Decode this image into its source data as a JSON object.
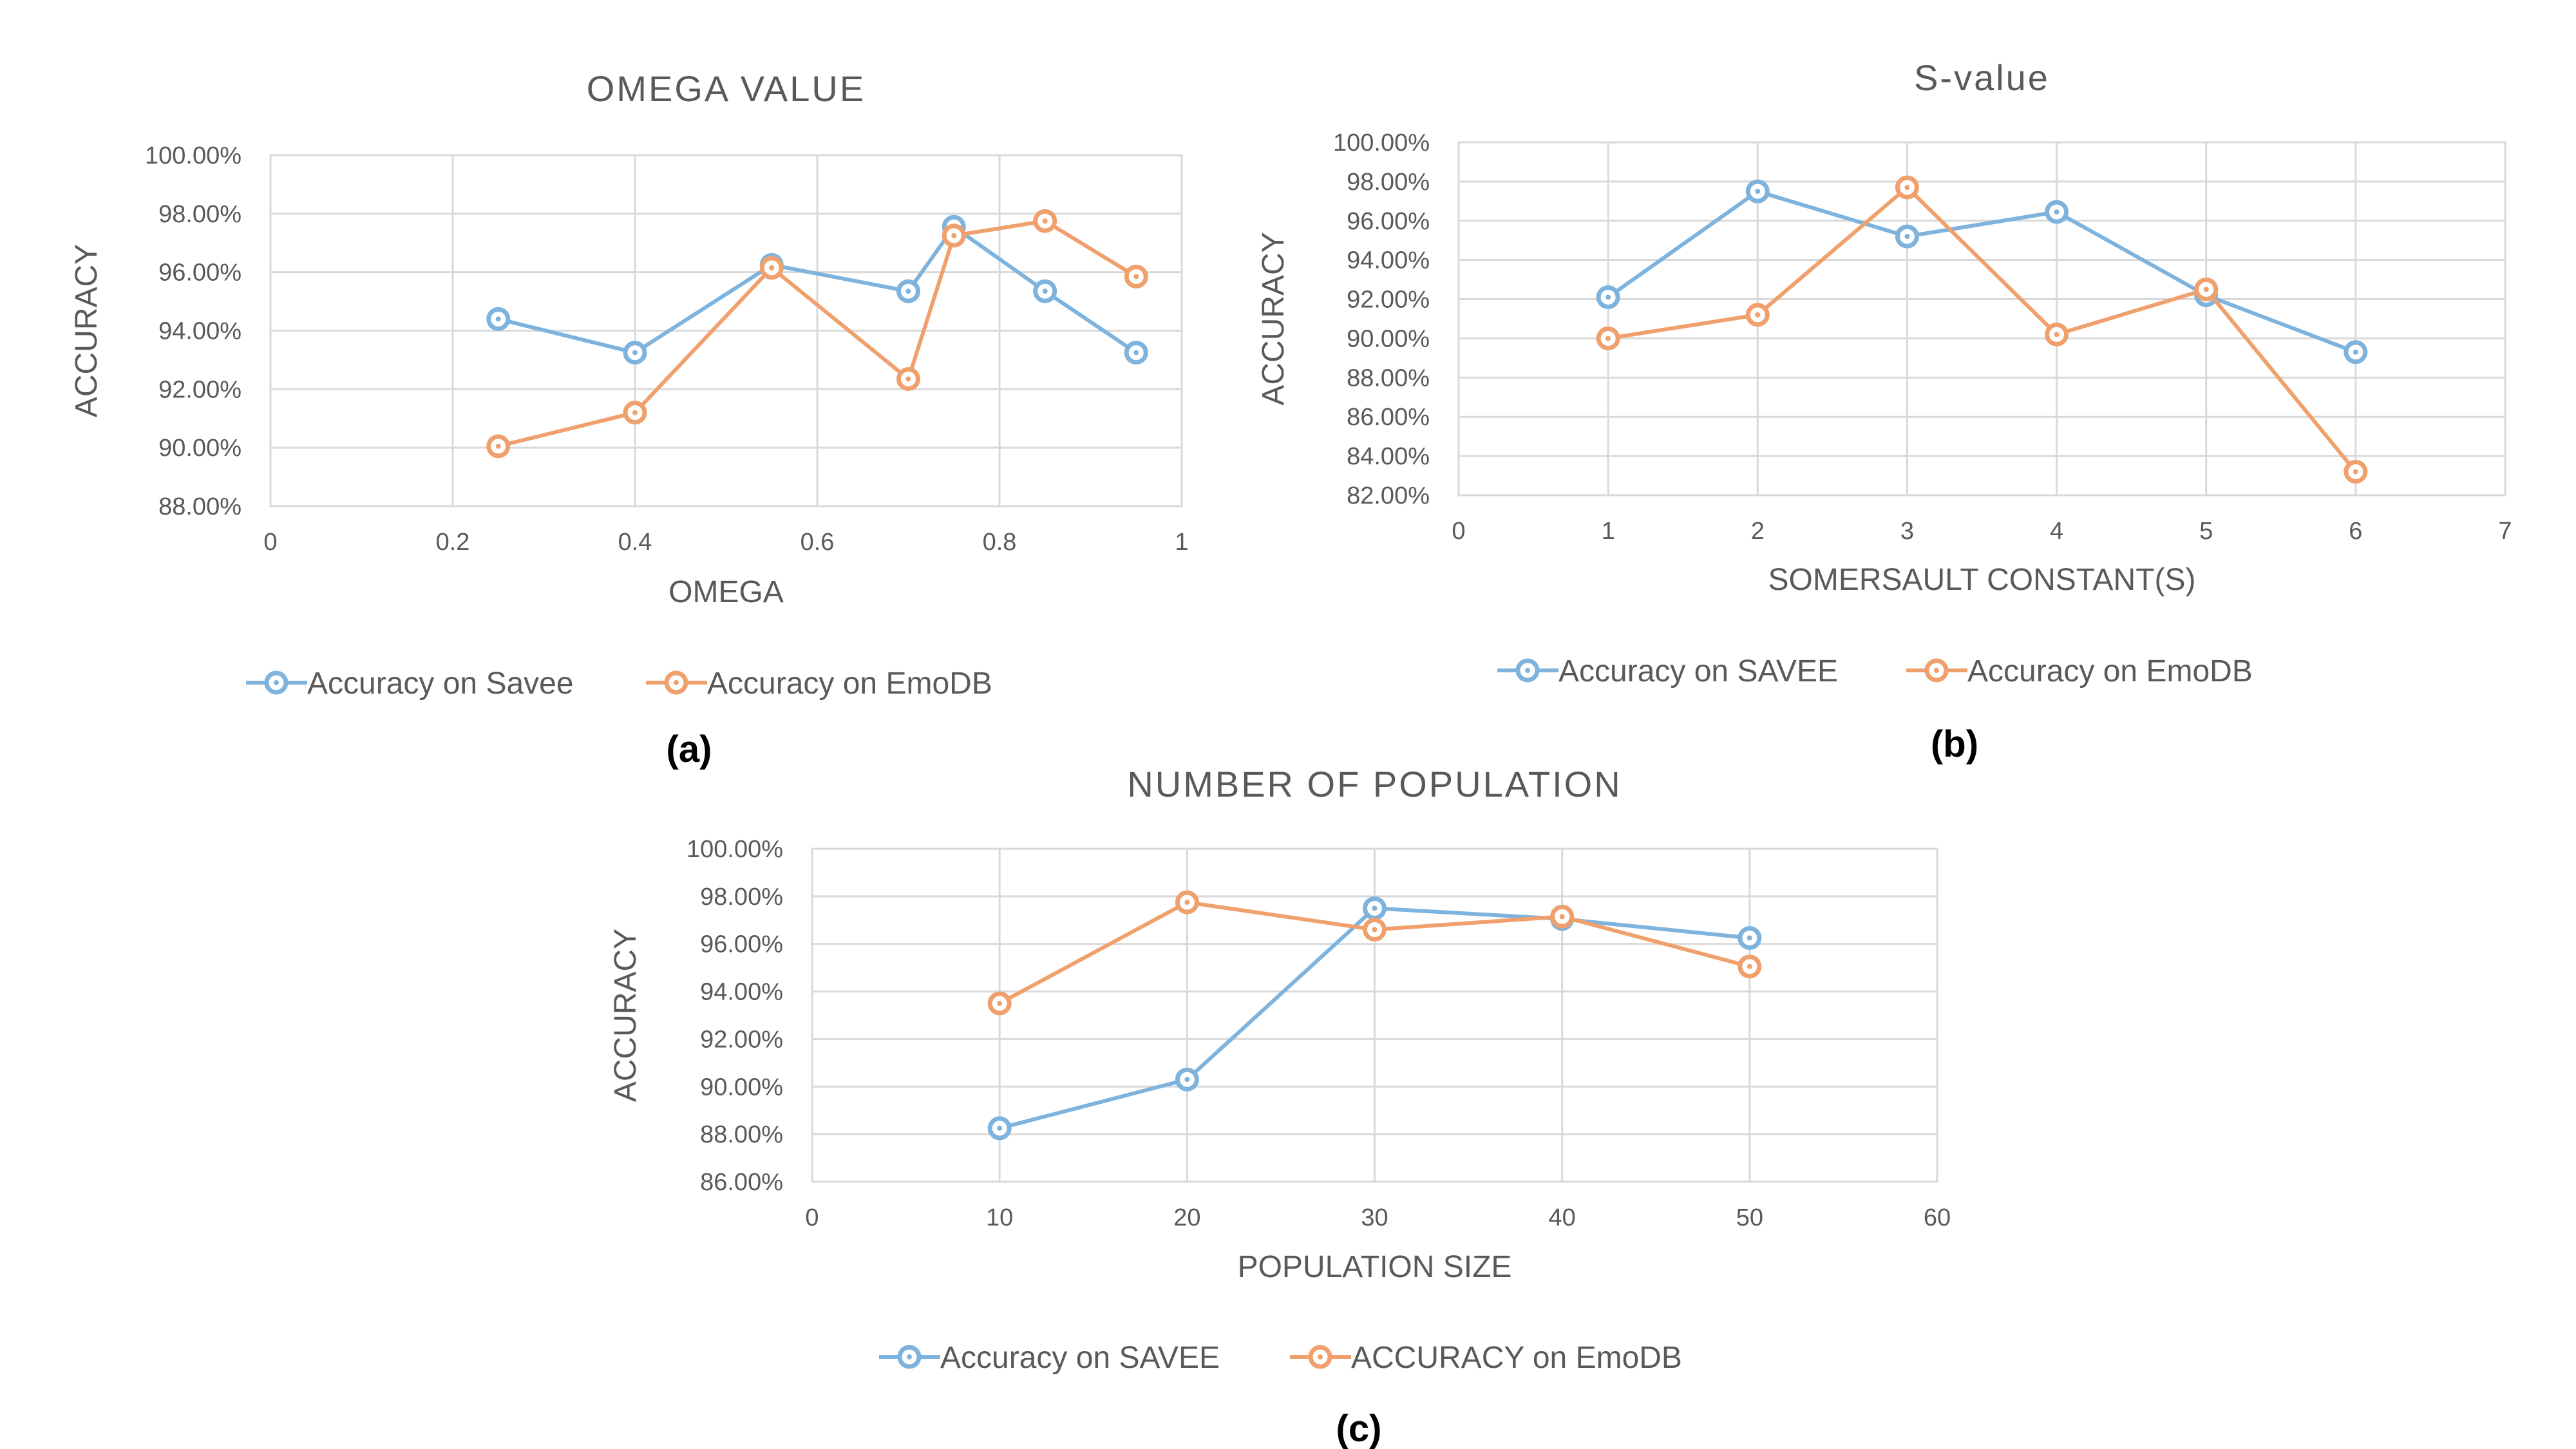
{
  "colors": {
    "savee": "#7EB3DD",
    "emodb": "#F0A06C",
    "grid": "#D9D9D9",
    "text": "#595959",
    "panel_label": "#000000"
  },
  "chart_data": [
    {
      "id": "a",
      "type": "line",
      "title": "OMEGA VALUE",
      "xlabel": "OMEGA",
      "ylabel": "ACCURACY",
      "panel_label": "(a)",
      "xlim": [
        0,
        1
      ],
      "ylim": [
        88,
        100
      ],
      "x_ticks": [
        0,
        0.2,
        0.4,
        0.6,
        0.8,
        1
      ],
      "x_tick_labels": [
        "0",
        "0.2",
        "0.4",
        "0.6",
        "0.8",
        "1"
      ],
      "y_ticks": [
        88,
        90,
        92,
        94,
        96,
        98,
        100
      ],
      "y_tick_labels": [
        "88.00%",
        "90.00%",
        "92.00%",
        "94.00%",
        "96.00%",
        "98.00%",
        "100.00%"
      ],
      "grid": true,
      "legend_position": "bottom",
      "series": [
        {
          "name": "Accuracy on Savee",
          "color_key": "savee",
          "x": [
            0.25,
            0.4,
            0.55,
            0.7,
            0.75,
            0.85,
            0.95
          ],
          "y": [
            94.4,
            93.25,
            96.25,
            95.35,
            97.55,
            95.35,
            93.25
          ]
        },
        {
          "name": "Accuracy on EmoDB",
          "color_key": "emodb",
          "x": [
            0.25,
            0.4,
            0.55,
            0.7,
            0.75,
            0.85,
            0.95
          ],
          "y": [
            90.05,
            91.2,
            96.15,
            92.35,
            97.25,
            97.75,
            95.85
          ]
        }
      ]
    },
    {
      "id": "b",
      "type": "line",
      "title": "S-value",
      "xlabel": "SOMERSAULT CONSTANT(S)",
      "ylabel": "ACCURACY",
      "panel_label": "(b)",
      "xlim": [
        0,
        7
      ],
      "ylim": [
        82,
        100
      ],
      "x_ticks": [
        0,
        1,
        2,
        3,
        4,
        5,
        6,
        7
      ],
      "x_tick_labels": [
        "0",
        "1",
        "2",
        "3",
        "4",
        "5",
        "6",
        "7"
      ],
      "y_ticks": [
        82,
        84,
        86,
        88,
        90,
        92,
        94,
        96,
        98,
        100
      ],
      "y_tick_labels": [
        "82.00%",
        "84.00%",
        "86.00%",
        "88.00%",
        "90.00%",
        "92.00%",
        "94.00%",
        "96.00%",
        "98.00%",
        "100.00%"
      ],
      "grid": true,
      "legend_position": "bottom",
      "series": [
        {
          "name": "Accuracy on SAVEE",
          "color_key": "savee",
          "x": [
            1,
            2,
            3,
            4,
            5,
            6
          ],
          "y": [
            92.1,
            97.5,
            95.2,
            96.45,
            92.2,
            89.3
          ]
        },
        {
          "name": "Accuracy on EmoDB",
          "color_key": "emodb",
          "x": [
            1,
            2,
            3,
            4,
            5,
            6
          ],
          "y": [
            90.0,
            91.2,
            97.7,
            90.2,
            92.5,
            83.2
          ]
        }
      ]
    },
    {
      "id": "c",
      "type": "line",
      "title": "NUMBER OF POPULATION",
      "xlabel": "POPULATION SIZE",
      "ylabel": "ACCURACY",
      "panel_label": "(c)",
      "xlim": [
        0,
        60
      ],
      "ylim": [
        86,
        100
      ],
      "x_ticks": [
        0,
        10,
        20,
        30,
        40,
        50,
        60
      ],
      "x_tick_labels": [
        "0",
        "10",
        "20",
        "30",
        "40",
        "50",
        "60"
      ],
      "y_ticks": [
        86,
        88,
        90,
        92,
        94,
        96,
        98,
        100
      ],
      "y_tick_labels": [
        "86.00%",
        "88.00%",
        "90.00%",
        "92.00%",
        "94.00%",
        "96.00%",
        "98.00%",
        "100.00%"
      ],
      "grid": true,
      "legend_position": "bottom",
      "series": [
        {
          "name": "Accuracy on SAVEE",
          "color_key": "savee",
          "x": [
            10,
            20,
            30,
            40,
            50
          ],
          "y": [
            88.25,
            90.3,
            97.5,
            97.05,
            96.25
          ]
        },
        {
          "name": "ACCURACY on EmoDB",
          "color_key": "emodb",
          "x": [
            10,
            20,
            30,
            40,
            50
          ],
          "y": [
            93.5,
            97.75,
            96.6,
            97.15,
            95.05
          ]
        }
      ]
    }
  ]
}
